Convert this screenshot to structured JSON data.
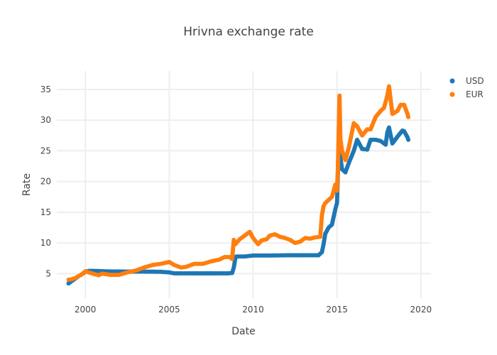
{
  "chart_data": {
    "type": "scatter",
    "title": "Hrivna exchange rate",
    "xlabel": "Date",
    "ylabel": "Rate",
    "xlim": [
      1998.3,
      2020.6
    ],
    "ylim": [
      1.0,
      38.0
    ],
    "x_ticks": [
      2000,
      2005,
      2010,
      2015,
      2020
    ],
    "x_tick_labels": [
      "2000",
      "2005",
      "2010",
      "2015",
      "2020"
    ],
    "y_ticks": [
      5,
      10,
      15,
      20,
      25,
      30,
      35
    ],
    "y_tick_labels": [
      "5",
      "10",
      "15",
      "20",
      "25",
      "30",
      "35"
    ],
    "grid": true,
    "legend_position": "top-right",
    "series": [
      {
        "name": "USD",
        "color": "#1f77b4",
        "x": [
          1999.0,
          1999.2,
          1999.4,
          1999.6,
          1999.8,
          2000.0,
          2000.2,
          2000.5,
          2001.0,
          2001.5,
          2002.0,
          2002.5,
          2003.0,
          2003.5,
          2004.0,
          2004.5,
          2005.0,
          2005.3,
          2005.7,
          2006.0,
          2007.0,
          2008.0,
          2008.5,
          2008.75,
          2008.85,
          2008.95,
          2009.0,
          2009.5,
          2010.0,
          2011.0,
          2012.0,
          2013.0,
          2013.9,
          2014.1,
          2014.2,
          2014.3,
          2014.5,
          2014.7,
          2014.9,
          2015.0,
          2015.05,
          2015.1,
          2015.15,
          2015.2,
          2015.3,
          2015.5,
          2015.7,
          2016.0,
          2016.2,
          2016.5,
          2016.8,
          2017.0,
          2017.3,
          2017.6,
          2017.9,
          2018.0,
          2018.1,
          2018.3,
          2018.6,
          2018.9,
          2019.0,
          2019.2,
          2019.25
        ],
        "y": [
          3.4,
          3.8,
          4.2,
          4.6,
          4.9,
          5.3,
          5.45,
          5.45,
          5.4,
          5.35,
          5.35,
          5.33,
          5.33,
          5.33,
          5.32,
          5.3,
          5.2,
          5.05,
          5.05,
          5.05,
          5.05,
          5.05,
          5.05,
          5.1,
          6.0,
          7.7,
          7.8,
          7.8,
          7.95,
          7.95,
          7.99,
          7.99,
          8.0,
          8.5,
          9.8,
          11.5,
          12.5,
          13.0,
          15.5,
          16.5,
          21.0,
          25.0,
          28.0,
          24.0,
          22.0,
          21.5,
          23.0,
          25.0,
          26.8,
          25.3,
          25.2,
          26.8,
          26.8,
          26.6,
          26.0,
          28.0,
          28.8,
          26.2,
          27.3,
          28.3,
          28.2,
          27.2,
          26.8
        ]
      },
      {
        "name": "EUR",
        "color": "#ff7f0e",
        "x": [
          1999.0,
          1999.2,
          1999.4,
          1999.6,
          1999.8,
          2000.0,
          2000.2,
          2000.5,
          2000.8,
          2001.0,
          2001.5,
          2002.0,
          2002.5,
          2003.0,
          2003.5,
          2004.0,
          2004.5,
          2005.0,
          2005.3,
          2005.7,
          2006.0,
          2006.5,
          2007.0,
          2007.5,
          2008.0,
          2008.3,
          2008.6,
          2008.75,
          2008.85,
          2008.95,
          2009.0,
          2009.2,
          2009.5,
          2009.8,
          2010.0,
          2010.3,
          2010.5,
          2010.8,
          2011.0,
          2011.3,
          2011.6,
          2011.9,
          2012.2,
          2012.5,
          2012.8,
          2013.1,
          2013.4,
          2013.7,
          2014.0,
          2014.1,
          2014.2,
          2014.3,
          2014.5,
          2014.7,
          2014.9,
          2015.0,
          2015.05,
          2015.1,
          2015.15,
          2015.2,
          2015.3,
          2015.5,
          2015.7,
          2016.0,
          2016.2,
          2016.5,
          2016.8,
          2017.0,
          2017.3,
          2017.6,
          2017.8,
          2018.0,
          2018.1,
          2018.3,
          2018.6,
          2018.8,
          2019.0,
          2019.2,
          2019.25
        ],
        "y": [
          4.0,
          4.1,
          4.3,
          4.6,
          4.9,
          5.4,
          5.2,
          4.95,
          4.75,
          5.0,
          4.8,
          4.8,
          5.2,
          5.5,
          6.0,
          6.4,
          6.6,
          6.9,
          6.4,
          6.0,
          6.1,
          6.6,
          6.6,
          7.0,
          7.3,
          7.7,
          7.7,
          7.4,
          10.5,
          9.8,
          10.0,
          10.6,
          11.2,
          11.8,
          10.8,
          9.8,
          10.4,
          10.6,
          11.2,
          11.4,
          11.0,
          10.8,
          10.5,
          10.0,
          10.2,
          10.8,
          10.7,
          10.9,
          11.0,
          14.5,
          16.0,
          16.5,
          17.0,
          17.5,
          19.5,
          18.5,
          22.0,
          28.0,
          34.0,
          27.0,
          25.0,
          23.5,
          25.5,
          29.5,
          29.0,
          27.5,
          28.5,
          28.5,
          30.5,
          31.5,
          32.0,
          34.0,
          35.5,
          31.0,
          31.5,
          32.5,
          32.5,
          31.0,
          30.5
        ]
      }
    ]
  }
}
